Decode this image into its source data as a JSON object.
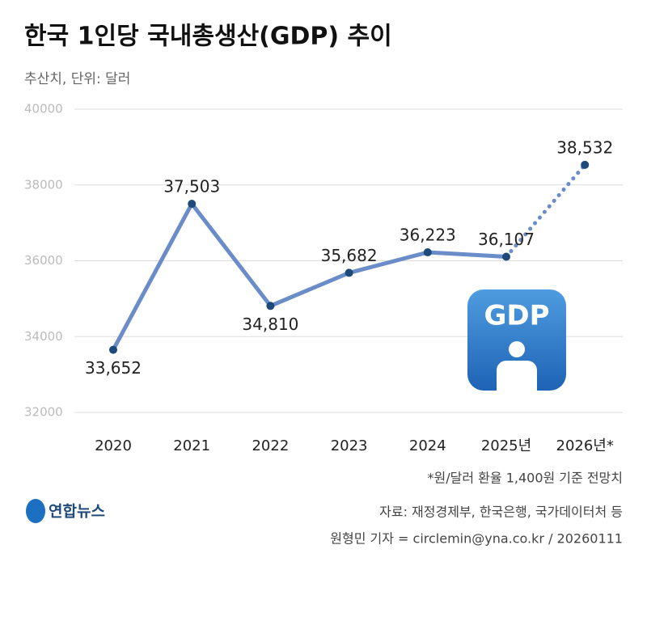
{
  "chart_data": {
    "type": "line",
    "title": "한국 1인당 국내총생산(GDP) 추이",
    "subtitle": "추산치, 단위: 달러",
    "categories": [
      "2020",
      "2021",
      "2022",
      "2023",
      "2024",
      "2025년",
      "2026년*"
    ],
    "values": [
      33652,
      37503,
      34810,
      35682,
      36223,
      36107,
      38532
    ],
    "value_labels": [
      "33,652",
      "37,503",
      "34,810",
      "35,682",
      "36,223",
      "36,107",
      "38,532"
    ],
    "value_label_positions": [
      "below",
      "above",
      "below",
      "above",
      "above",
      "above",
      "above"
    ],
    "projected": [
      false,
      false,
      false,
      false,
      false,
      false,
      true
    ],
    "color": "#6a8cc8",
    "point_color": "#1d4a7a",
    "ylim": [
      32000,
      40000
    ],
    "yticks": [
      32000,
      34000,
      36000,
      38000,
      40000
    ],
    "grid": true,
    "icon_text": "GDP",
    "note": "*원/달러 환율 1,400원 기준 전망치",
    "source": "자료: 재정경제부, 한국은행, 국가데이터처 등",
    "credit": "원형민 기자 = circlemin@yna.co.kr / 20260111",
    "logo": "연합뉴스"
  }
}
